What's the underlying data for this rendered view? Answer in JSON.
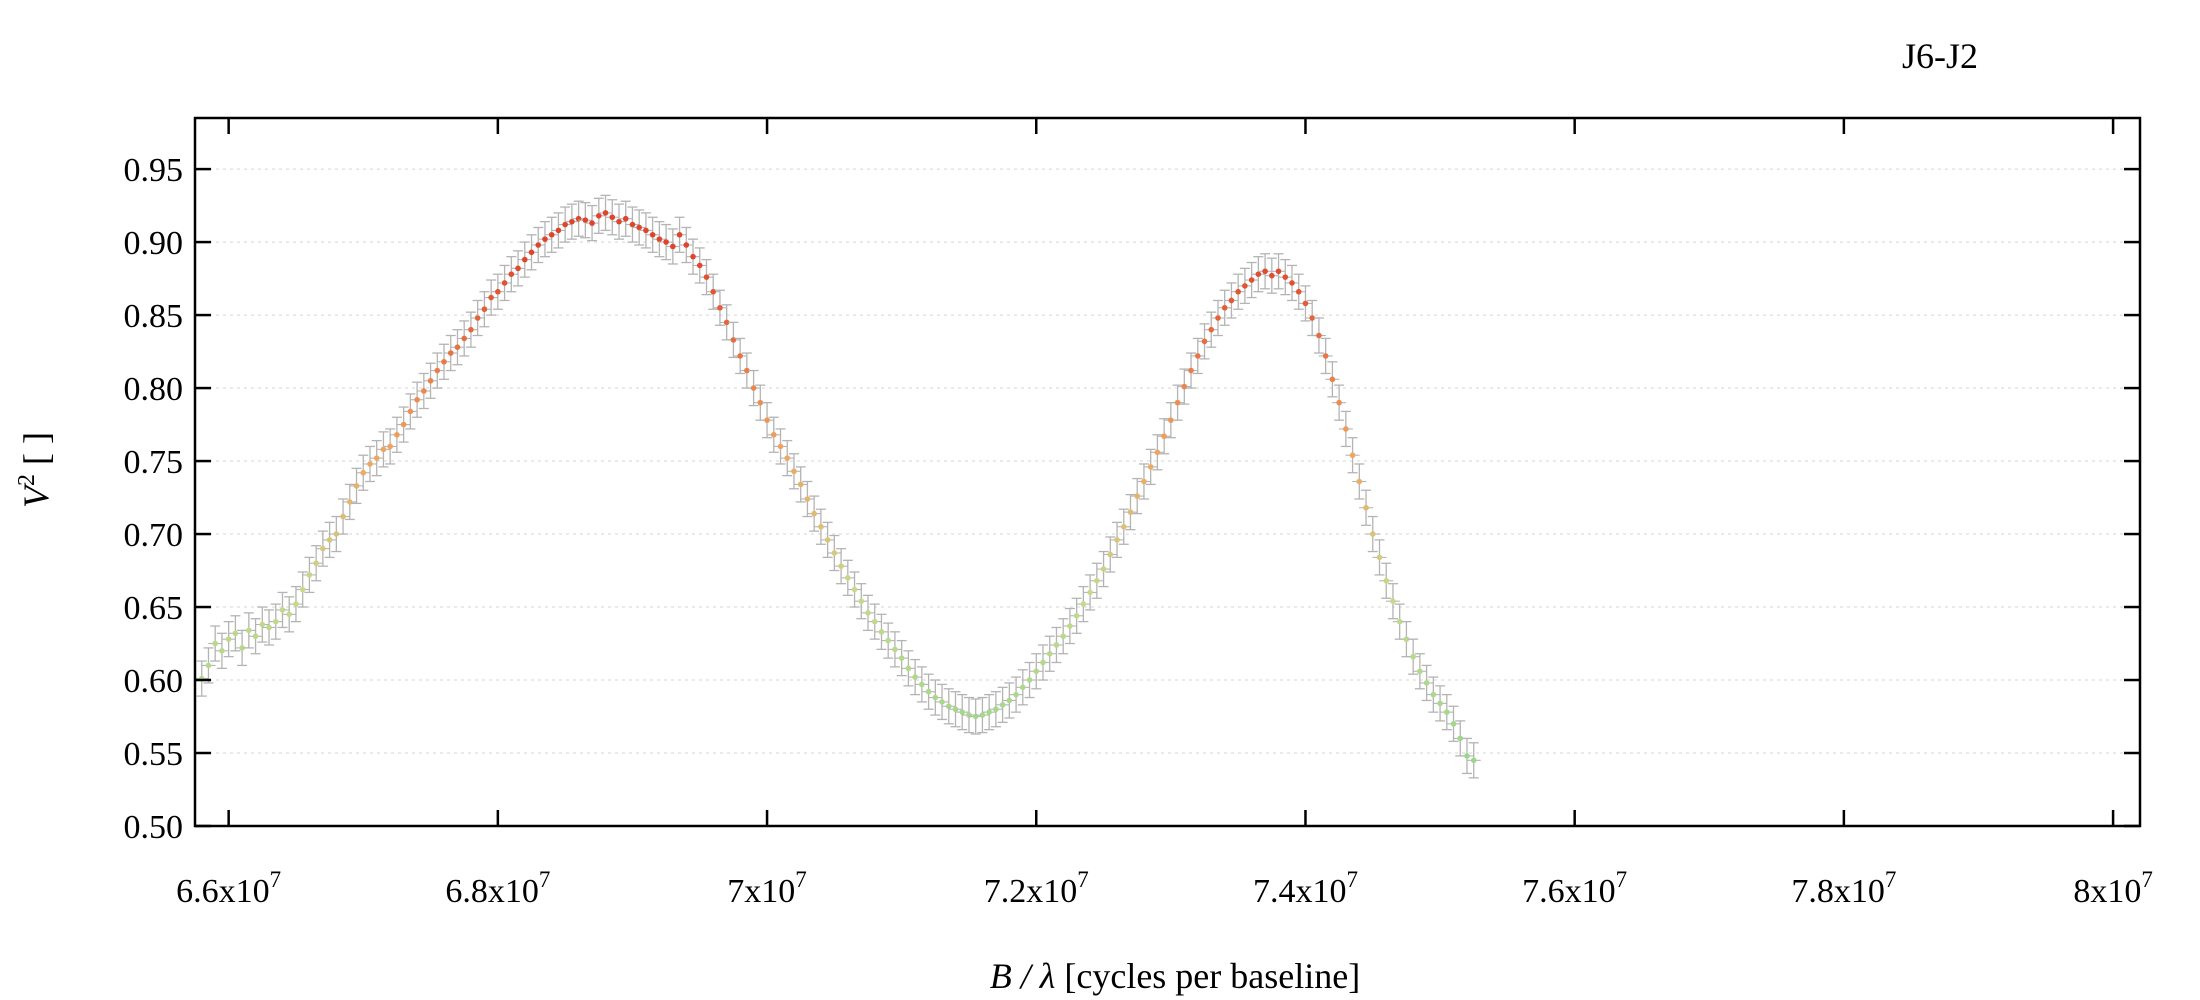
{
  "chart_data": {
    "type": "scatter",
    "title": "J6-J2",
    "xlabel_main": "B / λ",
    "xlabel_rest": " [cycles per baseline]",
    "ylabel_main": "V",
    "ylabel_sup": "2",
    "ylabel_rest": " [ ]",
    "xlim": [
      65750000,
      80200000
    ],
    "ylim": [
      0.5,
      0.985
    ],
    "xticks": [
      {
        "value": 66000000,
        "mantissa": "6.6x10",
        "exp": "7"
      },
      {
        "value": 68000000,
        "mantissa": "6.8x10",
        "exp": "7"
      },
      {
        "value": 70000000,
        "mantissa": "7x10",
        "exp": "7"
      },
      {
        "value": 72000000,
        "mantissa": "7.2x10",
        "exp": "7"
      },
      {
        "value": 74000000,
        "mantissa": "7.4x10",
        "exp": "7"
      },
      {
        "value": 76000000,
        "mantissa": "7.6x10",
        "exp": "7"
      },
      {
        "value": 78000000,
        "mantissa": "7.8x10",
        "exp": "7"
      },
      {
        "value": 80000000,
        "mantissa": "8x10",
        "exp": "7"
      }
    ],
    "yticks": [
      {
        "value": 0.5,
        "label": "0.50"
      },
      {
        "value": 0.55,
        "label": "0.55"
      },
      {
        "value": 0.6,
        "label": "0.60"
      },
      {
        "value": 0.65,
        "label": "0.65"
      },
      {
        "value": 0.7,
        "label": "0.70"
      },
      {
        "value": 0.75,
        "label": "0.75"
      },
      {
        "value": 0.8,
        "label": "0.80"
      },
      {
        "value": 0.85,
        "label": "0.85"
      },
      {
        "value": 0.9,
        "label": "0.90"
      },
      {
        "value": 0.95,
        "label": "0.95"
      }
    ],
    "grid": "horizontal dotted",
    "legend": "none",
    "point_color_scale": "by wavelength: green (low V²) → orange → red (high V²)",
    "colors": {
      "green": "#9ad88a",
      "yellow_green": "#c8d98a",
      "orange": "#f0a35e",
      "red": "#e0442a",
      "errorbar": "#b4b4b4",
      "grid": "#e3e3e3"
    },
    "errorbar_sigma": 0.012,
    "series": [
      {
        "points": [
          [
            65800000,
            0.601
          ],
          [
            65850000,
            0.61
          ],
          [
            65900000,
            0.625
          ],
          [
            65950000,
            0.62
          ],
          [
            66000000,
            0.628
          ],
          [
            66050000,
            0.632
          ],
          [
            66100000,
            0.622
          ],
          [
            66150000,
            0.634
          ],
          [
            66200000,
            0.63
          ],
          [
            66250000,
            0.638
          ],
          [
            66300000,
            0.636
          ],
          [
            66350000,
            0.64
          ],
          [
            66400000,
            0.648
          ],
          [
            66450000,
            0.645
          ],
          [
            66500000,
            0.652
          ],
          [
            66550000,
            0.662
          ],
          [
            66600000,
            0.672
          ],
          [
            66650000,
            0.68
          ],
          [
            66700000,
            0.69
          ],
          [
            66750000,
            0.696
          ],
          [
            66800000,
            0.7
          ],
          [
            66850000,
            0.712
          ],
          [
            66900000,
            0.722
          ],
          [
            66950000,
            0.733
          ],
          [
            67000000,
            0.742
          ],
          [
            67050000,
            0.748
          ],
          [
            67100000,
            0.752
          ],
          [
            67150000,
            0.758
          ],
          [
            67200000,
            0.76
          ],
          [
            67250000,
            0.768
          ],
          [
            67300000,
            0.775
          ],
          [
            67350000,
            0.784
          ],
          [
            67400000,
            0.792
          ],
          [
            67450000,
            0.798
          ],
          [
            67500000,
            0.805
          ],
          [
            67550000,
            0.812
          ],
          [
            67600000,
            0.818
          ],
          [
            67650000,
            0.824
          ],
          [
            67700000,
            0.828
          ],
          [
            67750000,
            0.834
          ],
          [
            67800000,
            0.84
          ],
          [
            67850000,
            0.848
          ],
          [
            67900000,
            0.854
          ],
          [
            67950000,
            0.862
          ],
          [
            68000000,
            0.866
          ],
          [
            68050000,
            0.872
          ],
          [
            68100000,
            0.878
          ],
          [
            68150000,
            0.882
          ],
          [
            68200000,
            0.888
          ],
          [
            68250000,
            0.893
          ],
          [
            68300000,
            0.898
          ],
          [
            68350000,
            0.902
          ],
          [
            68400000,
            0.905
          ],
          [
            68450000,
            0.908
          ],
          [
            68500000,
            0.912
          ],
          [
            68550000,
            0.914
          ],
          [
            68600000,
            0.916
          ],
          [
            68650000,
            0.915
          ],
          [
            68700000,
            0.913
          ],
          [
            68750000,
            0.918
          ],
          [
            68800000,
            0.92
          ],
          [
            68850000,
            0.917
          ],
          [
            68900000,
            0.914
          ],
          [
            68950000,
            0.916
          ],
          [
            69000000,
            0.912
          ],
          [
            69050000,
            0.91
          ],
          [
            69100000,
            0.908
          ],
          [
            69150000,
            0.905
          ],
          [
            69200000,
            0.902
          ],
          [
            69250000,
            0.9
          ],
          [
            69300000,
            0.897
          ],
          [
            69350000,
            0.905
          ],
          [
            69400000,
            0.898
          ],
          [
            69450000,
            0.89
          ],
          [
            69500000,
            0.884
          ],
          [
            69550000,
            0.876
          ],
          [
            69600000,
            0.866
          ],
          [
            69650000,
            0.855
          ],
          [
            69700000,
            0.845
          ],
          [
            69750000,
            0.833
          ],
          [
            69800000,
            0.822
          ],
          [
            69850000,
            0.812
          ],
          [
            69900000,
            0.8
          ],
          [
            69950000,
            0.79
          ],
          [
            70000000,
            0.778
          ],
          [
            70050000,
            0.768
          ],
          [
            70100000,
            0.76
          ],
          [
            70150000,
            0.752
          ],
          [
            70200000,
            0.743
          ],
          [
            70250000,
            0.734
          ],
          [
            70300000,
            0.724
          ],
          [
            70350000,
            0.714
          ],
          [
            70400000,
            0.705
          ],
          [
            70450000,
            0.696
          ],
          [
            70500000,
            0.687
          ],
          [
            70550000,
            0.678
          ],
          [
            70600000,
            0.67
          ],
          [
            70650000,
            0.662
          ],
          [
            70700000,
            0.654
          ],
          [
            70750000,
            0.646
          ],
          [
            70800000,
            0.64
          ],
          [
            70850000,
            0.633
          ],
          [
            70900000,
            0.627
          ],
          [
            70950000,
            0.621
          ],
          [
            71000000,
            0.615
          ],
          [
            71050000,
            0.608
          ],
          [
            71100000,
            0.602
          ],
          [
            71150000,
            0.597
          ],
          [
            71200000,
            0.592
          ],
          [
            71250000,
            0.588
          ],
          [
            71300000,
            0.585
          ],
          [
            71350000,
            0.582
          ],
          [
            71400000,
            0.58
          ],
          [
            71450000,
            0.578
          ],
          [
            71500000,
            0.576
          ],
          [
            71550000,
            0.575
          ],
          [
            71600000,
            0.576
          ],
          [
            71650000,
            0.578
          ],
          [
            71700000,
            0.58
          ],
          [
            71750000,
            0.583
          ],
          [
            71800000,
            0.586
          ],
          [
            71850000,
            0.59
          ],
          [
            71900000,
            0.595
          ],
          [
            71950000,
            0.6
          ],
          [
            72000000,
            0.606
          ],
          [
            72050000,
            0.612
          ],
          [
            72100000,
            0.618
          ],
          [
            72150000,
            0.624
          ],
          [
            72200000,
            0.63
          ],
          [
            72250000,
            0.637
          ],
          [
            72300000,
            0.644
          ],
          [
            72350000,
            0.652
          ],
          [
            72400000,
            0.66
          ],
          [
            72450000,
            0.668
          ],
          [
            72500000,
            0.676
          ],
          [
            72550000,
            0.686
          ],
          [
            72600000,
            0.696
          ],
          [
            72650000,
            0.705
          ],
          [
            72700000,
            0.715
          ],
          [
            72750000,
            0.726
          ],
          [
            72800000,
            0.736
          ],
          [
            72850000,
            0.746
          ],
          [
            72900000,
            0.756
          ],
          [
            72950000,
            0.767
          ],
          [
            73000000,
            0.778
          ],
          [
            73050000,
            0.79
          ],
          [
            73100000,
            0.801
          ],
          [
            73150000,
            0.812
          ],
          [
            73200000,
            0.822
          ],
          [
            73250000,
            0.832
          ],
          [
            73300000,
            0.84
          ],
          [
            73350000,
            0.848
          ],
          [
            73400000,
            0.855
          ],
          [
            73450000,
            0.86
          ],
          [
            73500000,
            0.866
          ],
          [
            73550000,
            0.87
          ],
          [
            73600000,
            0.874
          ],
          [
            73650000,
            0.878
          ],
          [
            73700000,
            0.88
          ],
          [
            73750000,
            0.877
          ],
          [
            73800000,
            0.88
          ],
          [
            73850000,
            0.876
          ],
          [
            73900000,
            0.872
          ],
          [
            73950000,
            0.866
          ],
          [
            74000000,
            0.858
          ],
          [
            74050000,
            0.848
          ],
          [
            74100000,
            0.836
          ],
          [
            74150000,
            0.822
          ],
          [
            74200000,
            0.806
          ],
          [
            74250000,
            0.79
          ],
          [
            74300000,
            0.772
          ],
          [
            74350000,
            0.754
          ],
          [
            74400000,
            0.736
          ],
          [
            74450000,
            0.718
          ],
          [
            74500000,
            0.7
          ],
          [
            74550000,
            0.684
          ],
          [
            74600000,
            0.668
          ],
          [
            74650000,
            0.654
          ],
          [
            74700000,
            0.64
          ],
          [
            74750000,
            0.628
          ],
          [
            74800000,
            0.616
          ],
          [
            74850000,
            0.606
          ],
          [
            74900000,
            0.598
          ],
          [
            74950000,
            0.59
          ],
          [
            75000000,
            0.584
          ],
          [
            75050000,
            0.578
          ],
          [
            75100000,
            0.57
          ],
          [
            75150000,
            0.56
          ],
          [
            75200000,
            0.548
          ],
          [
            75250000,
            0.545
          ]
        ]
      }
    ]
  }
}
